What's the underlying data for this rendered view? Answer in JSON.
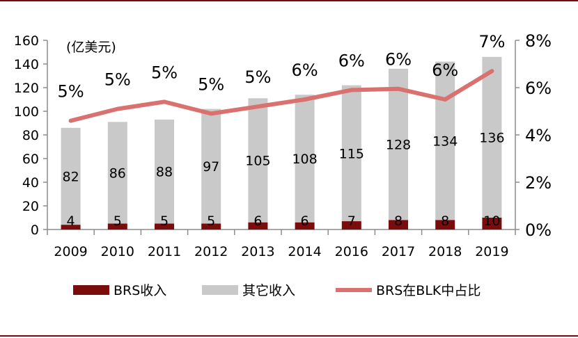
{
  "chart_data": {
    "type": "bar",
    "stacked": true,
    "unit_label": "(亿美元)",
    "categories": [
      "2009",
      "2010",
      "2011",
      "2012",
      "2013",
      "2014",
      "2016",
      "2017",
      "2018",
      "2019"
    ],
    "series": [
      {
        "name": "BRS收入",
        "type": "bar",
        "axis": "left",
        "color": "#7b0c0c",
        "values": [
          4,
          5,
          5,
          5,
          6,
          6,
          7,
          8,
          8,
          10
        ]
      },
      {
        "name": "其它收入",
        "type": "bar",
        "axis": "left",
        "color": "#c9c9c9",
        "values": [
          82,
          86,
          88,
          97,
          105,
          108,
          115,
          128,
          134,
          136
        ]
      },
      {
        "name": "BRS在BLK中占比",
        "type": "line",
        "axis": "right",
        "color": "#d9716f",
        "values": [
          4.6,
          5.1,
          5.4,
          4.9,
          5.2,
          5.5,
          5.9,
          5.95,
          5.5,
          6.7
        ],
        "labels": [
          "5%",
          "5%",
          "5%",
          "5%",
          "5%",
          "6%",
          "6%",
          "6%",
          "6%",
          "7%"
        ]
      }
    ],
    "left_axis": {
      "min": 0,
      "max": 160,
      "step": 20,
      "ticks": [
        "0",
        "20",
        "40",
        "60",
        "80",
        "100",
        "120",
        "140",
        "160"
      ]
    },
    "right_axis": {
      "min": 0,
      "max": 8,
      "step": 2,
      "ticks": [
        "0%",
        "2%",
        "4%",
        "6%",
        "8%"
      ]
    },
    "legend": {
      "position": "bottom",
      "items": [
        "BRS收入",
        "其它收入",
        "BRS在BLK中占比"
      ]
    }
  }
}
